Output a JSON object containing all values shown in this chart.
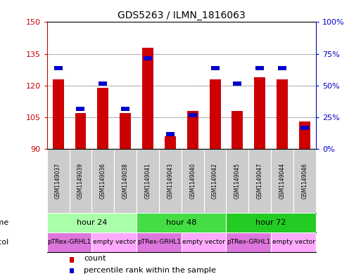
{
  "title": "GDS5263 / ILMN_1816063",
  "samples": [
    "GSM1149037",
    "GSM1149039",
    "GSM1149036",
    "GSM1149038",
    "GSM1149041",
    "GSM1149043",
    "GSM1149040",
    "GSM1149042",
    "GSM1149045",
    "GSM1149047",
    "GSM1149044",
    "GSM1149046"
  ],
  "count_values": [
    123,
    107,
    119,
    107,
    138,
    96,
    108,
    123,
    108,
    124,
    123,
    103
  ],
  "percentile_values": [
    62,
    30,
    50,
    30,
    70,
    10,
    25,
    62,
    50,
    62,
    62,
    15
  ],
  "ylim_left": [
    90,
    150
  ],
  "ylim_right": [
    0,
    100
  ],
  "yticks_left": [
    90,
    105,
    120,
    135,
    150
  ],
  "yticks_right": [
    0,
    25,
    50,
    75,
    100
  ],
  "bar_color_red": "#cc0000",
  "bar_color_blue": "#0000cc",
  "bar_width": 0.5,
  "time_groups": [
    {
      "label": "hour 24",
      "start": 0,
      "end": 4,
      "color": "#aaffaa"
    },
    {
      "label": "hour 48",
      "start": 4,
      "end": 8,
      "color": "#44dd44"
    },
    {
      "label": "hour 72",
      "start": 8,
      "end": 12,
      "color": "#22cc22"
    }
  ],
  "protocol_groups": [
    {
      "label": "pTRex-GRHL1",
      "start": 0,
      "end": 2,
      "color": "#dd77dd"
    },
    {
      "label": "empty vector",
      "start": 2,
      "end": 4,
      "color": "#ffaaff"
    },
    {
      "label": "pTRex-GRHL1",
      "start": 4,
      "end": 6,
      "color": "#dd77dd"
    },
    {
      "label": "empty vector",
      "start": 6,
      "end": 8,
      "color": "#ffaaff"
    },
    {
      "label": "pTRex-GRHL1",
      "start": 8,
      "end": 10,
      "color": "#dd77dd"
    },
    {
      "label": "empty vector",
      "start": 10,
      "end": 12,
      "color": "#ffaaff"
    }
  ],
  "axis_color_left": "#cc0000",
  "axis_color_right": "#0000cc",
  "sample_box_color": "#cccccc",
  "legend_count_color": "#cc0000",
  "legend_pct_color": "#0000cc",
  "fig_width": 5.13,
  "fig_height": 3.93,
  "fig_dpi": 100
}
